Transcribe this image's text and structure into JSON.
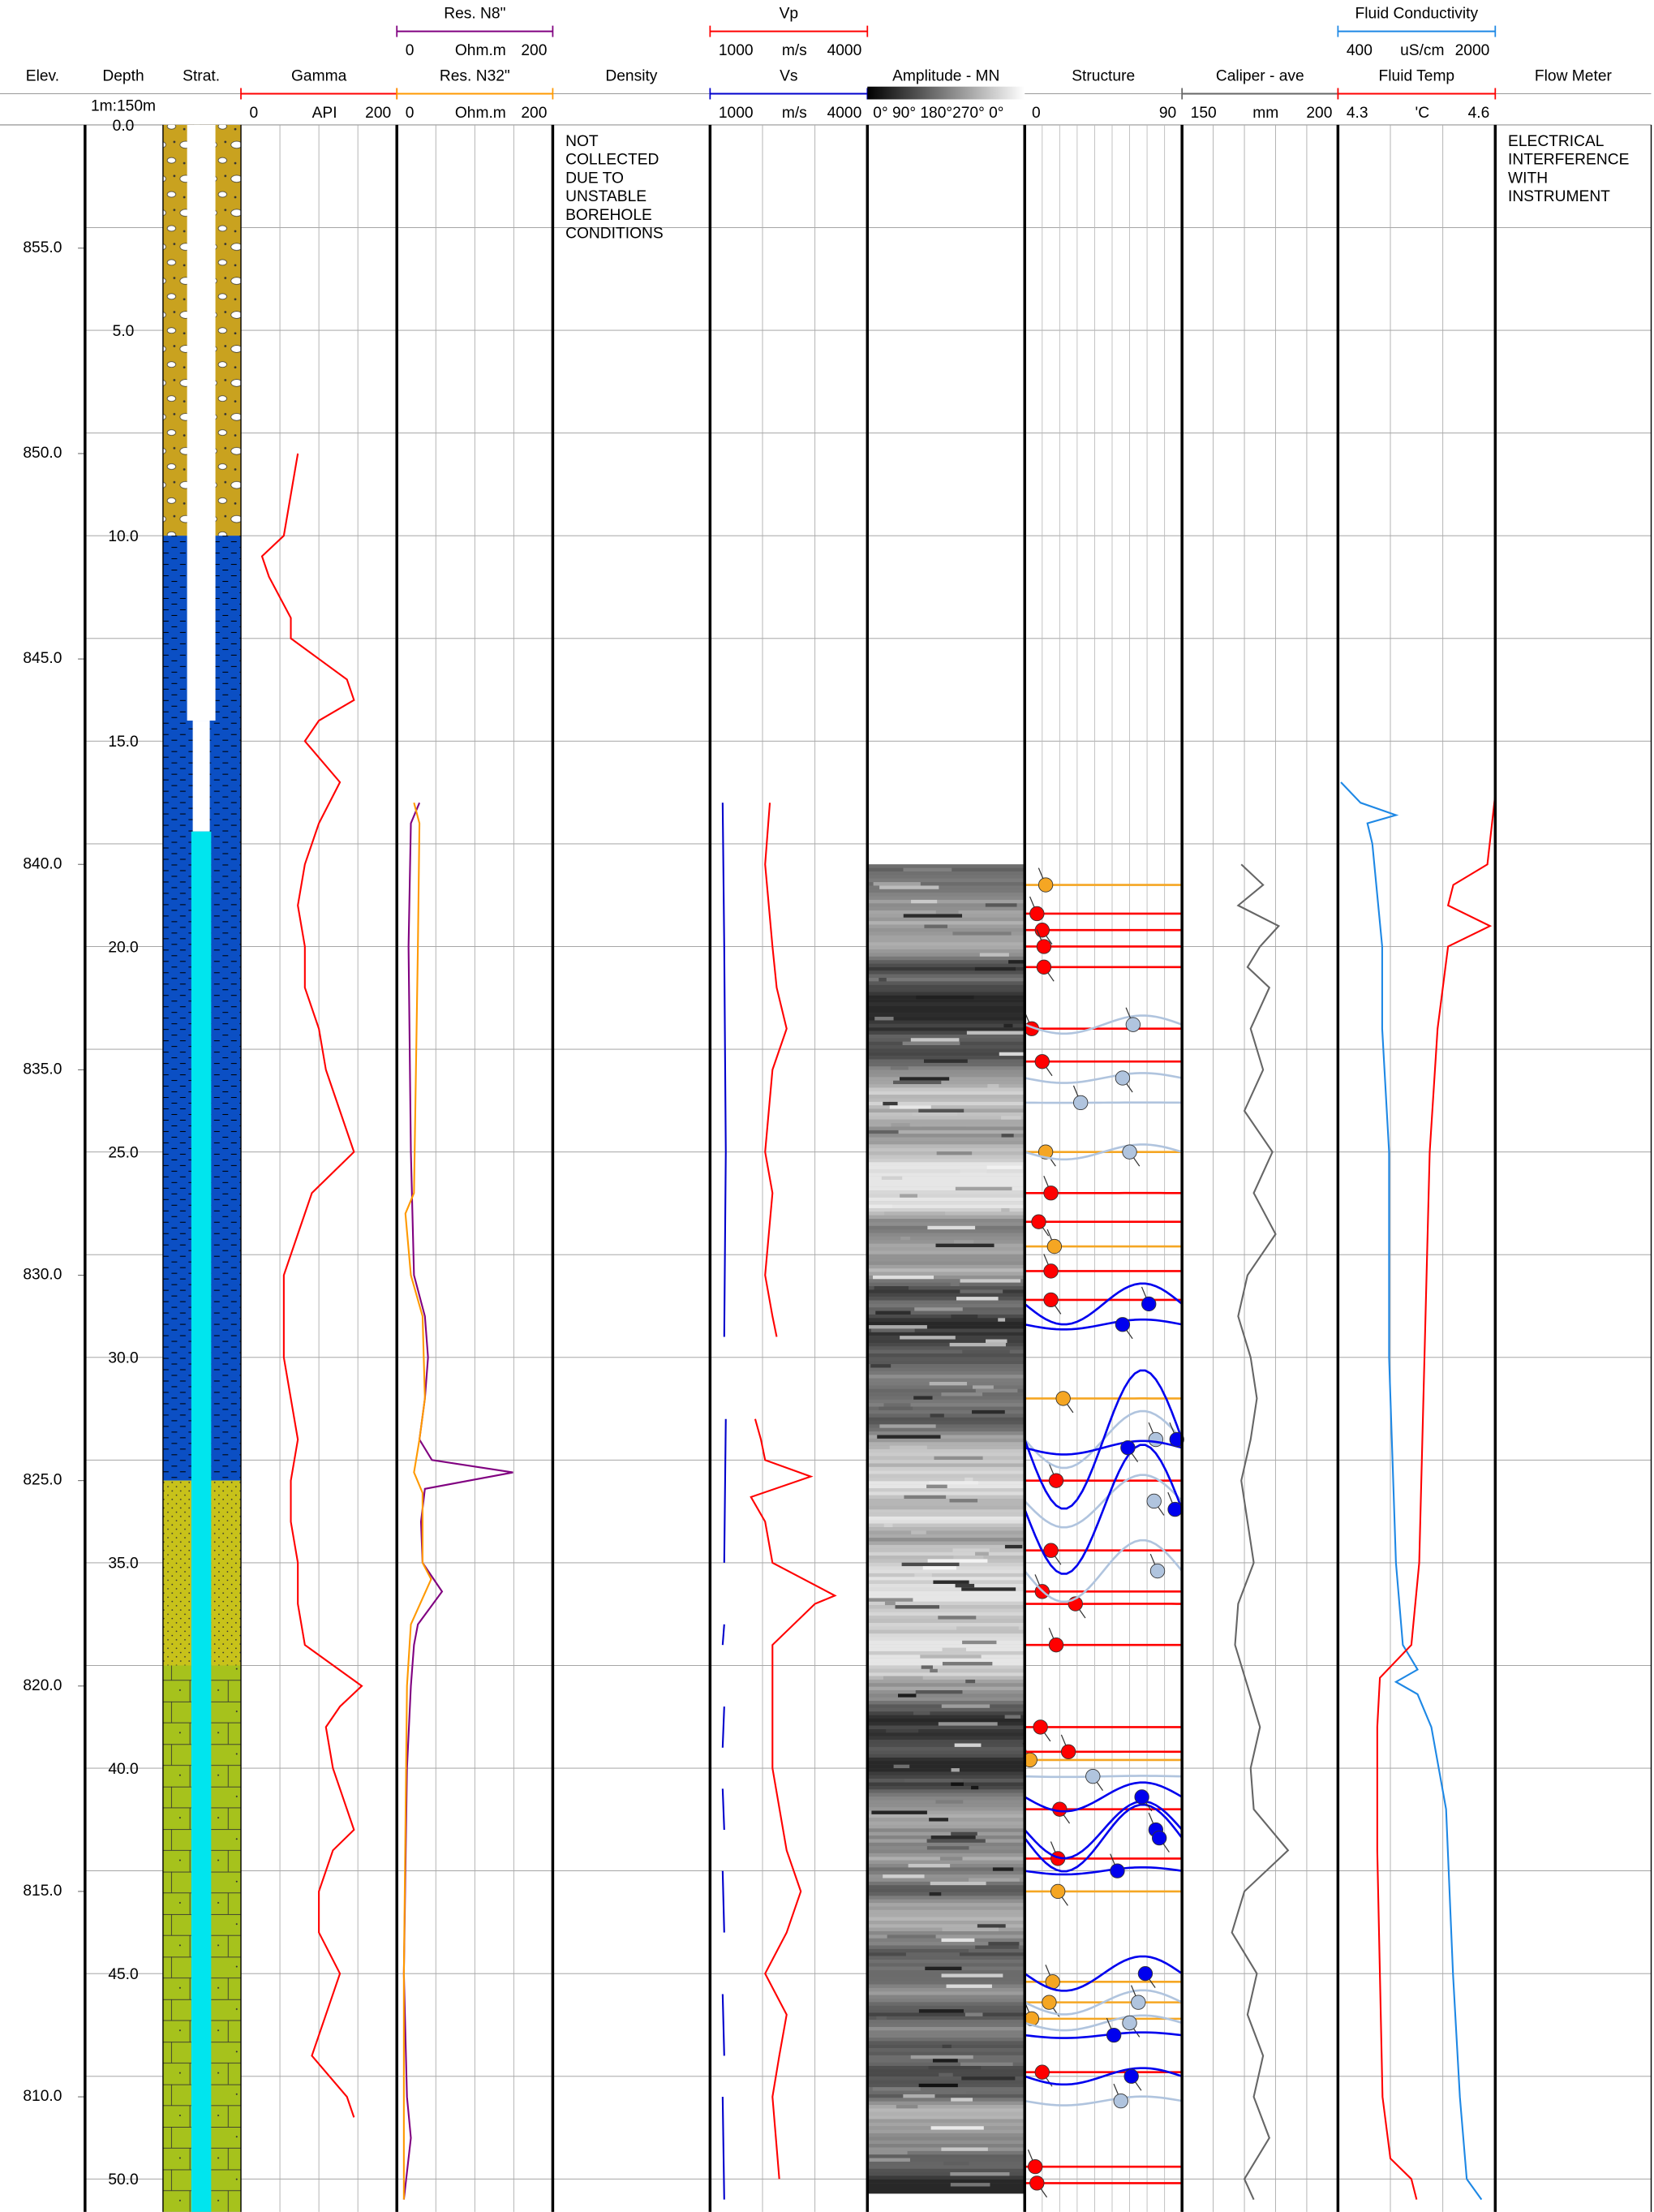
{
  "chart_data": {
    "type": "well-log",
    "headers": {
      "elev": "Elev.",
      "depth": "Depth",
      "scale": "1m:150m",
      "strat": "Strat."
    },
    "ylim": [
      0,
      50.8
    ],
    "yticks": [
      {
        "value": 0,
        "label": "0.0"
      },
      {
        "value": 5,
        "label": "5.0"
      },
      {
        "value": 10,
        "label": "10.0"
      },
      {
        "value": 15,
        "label": "15.0"
      },
      {
        "value": 20,
        "label": "20.0"
      },
      {
        "value": 25,
        "label": "25.0"
      },
      {
        "value": 30,
        "label": "30.0"
      },
      {
        "value": 35,
        "label": "35.0"
      },
      {
        "value": 40,
        "label": "40.0"
      },
      {
        "value": 45,
        "label": "45.0"
      },
      {
        "value": 50,
        "label": "50.0"
      }
    ],
    "minor_yticks": [
      2.5,
      7.5,
      12.5,
      17.5,
      22.5,
      27.5,
      32.5,
      37.5,
      42.5,
      47.5
    ],
    "elevation_lim": [
      858,
      807.2
    ],
    "elevation_ticks": [
      {
        "value": 855,
        "label": "855.0"
      },
      {
        "value": 850,
        "label": "850.0"
      },
      {
        "value": 845,
        "label": "845.0"
      },
      {
        "value": 840,
        "label": "840.0"
      },
      {
        "value": 835,
        "label": "835.0"
      },
      {
        "value": 830,
        "label": "830.0"
      },
      {
        "value": 825,
        "label": "825.0"
      },
      {
        "value": 820,
        "label": "820.0"
      },
      {
        "value": 815,
        "label": "815.0"
      },
      {
        "value": 810,
        "label": "810.0"
      }
    ],
    "strat": [
      {
        "top": 0,
        "base": 10,
        "color": "#c9a21f",
        "pattern": "gravel"
      },
      {
        "top": 10,
        "base": 33,
        "color": "#0b4fc4",
        "pattern": "clay"
      },
      {
        "top": 33,
        "base": 37.5,
        "color": "#c8c21a",
        "pattern": "sand"
      },
      {
        "top": 37.5,
        "base": 50.8,
        "color": "#a6c21c",
        "pattern": "sandstone"
      }
    ],
    "casing_base": 14.5,
    "water_level": 17.2,
    "tracks": [
      {
        "curves": [
          {
            "name": "Gamma",
            "unit": "API",
            "color": "#ff0000",
            "xlim": [
              0,
              200
            ],
            "xticks": [
              0,
              50,
              100,
              150,
              200
            ],
            "depth": [
              8,
              9,
              10,
              10.5,
              11,
              12,
              12.5,
              13,
              13.5,
              14,
              14.5,
              15,
              16,
              17,
              18,
              19,
              20,
              21,
              22,
              23,
              24,
              25,
              26,
              27,
              28,
              29,
              30,
              31,
              32,
              33,
              34,
              35,
              36,
              37,
              38,
              38.5,
              39,
              40,
              41,
              41.5,
              42,
              43,
              44,
              45,
              46,
              47,
              48,
              48.5
            ],
            "values": [
              73,
              64,
              55,
              27,
              36,
              64,
              64,
              100,
              136,
              145,
              100,
              82,
              127,
              100,
              82,
              73,
              82,
              82,
              100,
              109,
              127,
              145,
              91,
              73,
              55,
              55,
              55,
              64,
              73,
              64,
              64,
              73,
              73,
              82,
              155,
              127,
              109,
              118,
              136,
              145,
              118,
              100,
              100,
              127,
              109,
              91,
              136,
              145
            ]
          }
        ]
      },
      {
        "curves": [
          {
            "name": "Res. N8\"",
            "unit": "Ohm.m",
            "color": "#800080",
            "xlim": [
              0,
              200
            ],
            "xticks": [
              0,
              50,
              100,
              150,
              200
            ],
            "depth": [
              16.5,
              17,
              20,
              25,
              28,
              29,
              30,
              31,
              32,
              32.5,
              32.8,
              33.2,
              34,
              35,
              35.7,
              36.5,
              37,
              38,
              40,
              45,
              48,
              49,
              50.5
            ],
            "values": [
              29,
              18,
              15,
              18,
              22,
              36,
              40,
              36,
              29,
              45,
              149,
              36,
              31,
              33,
              58,
              27,
              22,
              18,
              13,
              9,
              13,
              18,
              9
            ]
          },
          {
            "name": "Res. N32\"",
            "unit": "Ohm.m",
            "color": "#ff9900",
            "xlim": [
              0,
              200
            ],
            "xticks": [
              0,
              50,
              100,
              150,
              200
            ],
            "depth": [
              16.5,
              17,
              20,
              26,
              26.5,
              28,
              29,
              31,
              32,
              32.8,
              33.3,
              35,
              35.4,
              36.5,
              38,
              45,
              50.5
            ],
            "values": [
              22,
              29,
              27,
              22,
              11,
              18,
              33,
              36,
              29,
              22,
              33,
              33,
              44,
              18,
              13,
              9,
              9
            ]
          }
        ]
      },
      {
        "title": "Density",
        "note": [
          "NOT",
          "COLLECTED",
          "DUE TO",
          "UNSTABLE",
          "BOREHOLE",
          "CONDITIONS"
        ]
      },
      {
        "curves": [
          {
            "name": "Vp",
            "unit": "m/s",
            "color": "#ff0000",
            "xlim": [
              1000,
              4000
            ],
            "xticks": [
              1000,
              2000,
              3000,
              4000
            ],
            "depth": [
              16.5,
              18,
              20,
              21,
              22,
              23,
              25,
              26,
              28,
              29,
              29.5,
              30.5,
              31.5,
              32,
              32.5,
              32.9,
              33.4,
              34,
              35,
              35.8,
              36,
              37,
              38,
              40,
              42,
              43,
              44,
              45,
              46,
              47,
              48,
              50
            ],
            "values": [
              2140,
              2050,
              2190,
              2270,
              2460,
              2190,
              2050,
              2190,
              2050,
              2190,
              2270,
              null,
              1860,
              1970,
              2050,
              2920,
              1780,
              2050,
              2190,
              3380,
              3000,
              2190,
              2190,
              2190,
              2460,
              2730,
              2460,
              2050,
              2460,
              2320,
              2190,
              2320
            ]
          },
          {
            "name": "Vs",
            "unit": "m/s",
            "color": "#0000cc",
            "xlim": [
              1000,
              4000
            ],
            "xticks": [
              1000,
              2000,
              3000,
              4000
            ],
            "depth": [
              16.5,
              20,
              25,
              29.5,
              30.5,
              31.5,
              35,
              35.8,
              36.5,
              37,
              37.8,
              38.5,
              39.5,
              40,
              40.5,
              41.5,
              42,
              42.5,
              44,
              44.8,
              45.5,
              47,
              47.5,
              48,
              50.5
            ],
            "values": [
              1240,
              1270,
              1300,
              1270,
              null,
              1300,
              1270,
              null,
              1270,
              1240,
              null,
              1270,
              1240,
              null,
              1240,
              1270,
              null,
              1240,
              1270,
              null,
              1240,
              1270,
              null,
              1240,
              1270
            ]
          }
        ]
      },
      {
        "title": "Amplitude - MN",
        "scale": "0°  90° 180°270° 0°",
        "top": 18.0,
        "base": 50.3
      },
      {
        "title": "Structure",
        "xlim": [
          0,
          90
        ],
        "xticks": [
          0,
          10,
          20,
          30,
          40,
          50,
          60,
          70,
          80,
          90
        ],
        "features": [
          {
            "color": "#f5a623",
            "depth": [
              18.5,
              25.0,
              27.3,
              31.0,
              39.8,
              43.0,
              45.2,
              45.7,
              46.1
            ],
            "values": [
              12,
              12,
              17,
              22,
              3,
              19,
              16,
              14,
              4
            ]
          },
          {
            "color": "#ff0000",
            "depth": [
              19.2,
              19.6,
              20.0,
              20.5,
              22.0,
              22.8,
              26.0,
              26.7,
              27.9,
              28.6,
              33.0,
              34.7,
              35.7,
              36.0,
              37.0,
              39.0,
              39.6,
              41.0,
              42.2,
              47.4,
              49.7,
              50.1
            ],
            "values": [
              7,
              10,
              11,
              11,
              4,
              10,
              15,
              8,
              15,
              15,
              18,
              15,
              10,
              29,
              18,
              9,
              25,
              20,
              19,
              10,
              6,
              7
            ]
          },
          {
            "color": "#b0c4de",
            "depth": [
              21.9,
              23.2,
              23.8,
              25.0,
              32.0,
              33.5,
              35.2,
              40.2,
              45.7,
              46.2,
              48.1
            ],
            "values": [
              62,
              56,
              32,
              60,
              75,
              74,
              76,
              39,
              65,
              60,
              55
            ]
          },
          {
            "color": "#0000ee",
            "depth": [
              28.7,
              29.2,
              32.0,
              32.2,
              33.7,
              40.7,
              41.5,
              41.7,
              42.5,
              45.0,
              46.5,
              47.5
            ],
            "values": [
              71,
              56,
              87,
              59,
              86,
              67,
              75,
              77,
              53,
              69,
              51,
              61
            ]
          }
        ]
      },
      {
        "curves": [
          {
            "name": "Caliper - ave",
            "unit": "mm",
            "color": "#666666",
            "xlim": [
              150,
              200
            ],
            "xticks": [
              150,
              160,
              170,
              180,
              190,
              200
            ],
            "depth": [
              18,
              18.5,
              19,
              19.5,
              20,
              20.5,
              21,
              22,
              23,
              24,
              25,
              26,
              27,
              28,
              29,
              30,
              31,
              32,
              33,
              34,
              35,
              36,
              37,
              38,
              39,
              40,
              41,
              42,
              43,
              44,
              45,
              46,
              47,
              48,
              49,
              50,
              50.5
            ],
            "values": [
              169,
              176,
              168,
              181,
              175,
              171,
              178,
              172,
              176,
              170,
              179,
              173,
              180,
              171,
              168,
              172,
              174,
              172,
              169,
              171,
              173,
              168,
              167,
              171,
              175,
              172,
              173,
              184,
              170,
              166,
              174,
              171,
              176,
              173,
              178,
              170,
              173
            ]
          }
        ]
      },
      {
        "curves": [
          {
            "name": "Fluid Conductivity",
            "unit": "uS/cm",
            "color": "#1e88e5",
            "xlim": [
              400,
              2000
            ],
            "xticks": [
              400,
              800,
              1200,
              1600,
              2000
            ],
            "depth": [
              16,
              16.5,
              16.8,
              17,
              17.5,
              18,
              20,
              22,
              25,
              30,
              35,
              37,
              37.6,
              37.9,
              38.2,
              39,
              41,
              45,
              48,
              50,
              50.5
            ],
            "values": [
              430,
              630,
              990,
              700,
              750,
              770,
              850,
              850,
              920,
              920,
              990,
              1060,
              1210,
              990,
              1210,
              1350,
              1500,
              1570,
              1640,
              1710,
              1860
            ]
          },
          {
            "name": "Fluid Temp",
            "unit": "'C",
            "color": "#ff0000",
            "xlim": [
              4.3,
              4.6
            ],
            "xticks": [
              4.3,
              4.4,
              4.5,
              4.6
            ],
            "depth": [
              16.3,
              18,
              18.5,
              19,
              19.5,
              20,
              22,
              25,
              30,
              35,
              37,
              37.8,
              39,
              42,
              45,
              48,
              49.5,
              50,
              50.5
            ],
            "values": [
              4.6,
              4.585,
              4.52,
              4.51,
              4.59,
              4.51,
              4.49,
              4.475,
              4.465,
              4.455,
              4.44,
              4.38,
              4.375,
              4.375,
              4.38,
              4.385,
              4.4,
              4.44,
              4.45
            ]
          }
        ]
      },
      {
        "title": "Flow Meter",
        "note": [
          "ELECTRICAL",
          "INTERFERENCE",
          "WITH",
          "INSTRUMENT"
        ]
      }
    ]
  }
}
